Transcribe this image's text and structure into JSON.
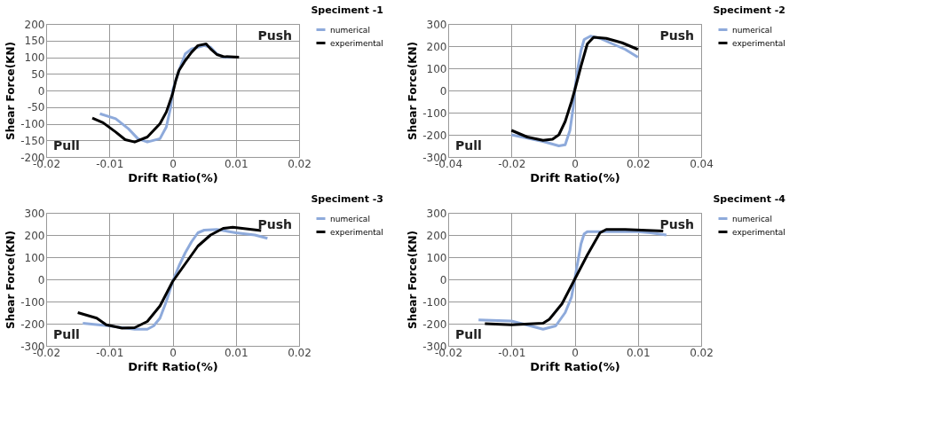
{
  "chart_data": [
    {
      "type": "line",
      "title": "Speciment -1",
      "xlabel": "Drift Ratio(%)",
      "ylabel": "Shear Force(KN)",
      "annotations": [
        "Push",
        "Pull"
      ],
      "xlim": [
        -0.02,
        0.02
      ],
      "xticks": [
        -0.02,
        -0.01,
        0,
        0.01,
        0.02
      ],
      "ylim": [
        -200,
        200
      ],
      "yticks": [
        -200,
        -150,
        -100,
        -50,
        0,
        50,
        100,
        150,
        200
      ],
      "grid": true,
      "legend": "right",
      "line_style": "solid",
      "marker": "none",
      "series": [
        {
          "name": "numerical",
          "color": "#8eaadb",
          "x": [
            -0.0115,
            -0.009,
            -0.007,
            -0.0055,
            -0.004,
            -0.002,
            -0.001,
            -0.0003,
            0,
            0.001,
            0.002,
            0.003,
            0.004,
            0.005,
            0.006,
            0.007,
            0.008,
            0.0095
          ],
          "values": [
            -70,
            -85,
            -115,
            -145,
            -155,
            -145,
            -110,
            -50,
            0,
            60,
            110,
            125,
            130,
            135,
            130,
            110,
            100,
            100
          ]
        },
        {
          "name": "experimental",
          "color": "#000000",
          "x": [
            -0.0127,
            -0.011,
            -0.009,
            -0.0075,
            -0.006,
            -0.004,
            -0.002,
            -0.001,
            0,
            0.0005,
            0.001,
            0.002,
            0.003,
            0.004,
            0.0053,
            0.006,
            0.007,
            0.008,
            0.0105
          ],
          "values": [
            -83,
            -97,
            -125,
            -148,
            -155,
            -140,
            -100,
            -65,
            -10,
            30,
            60,
            90,
            115,
            135,
            140,
            125,
            108,
            102,
            100
          ]
        }
      ]
    },
    {
      "type": "line",
      "title": "Speciment -2",
      "xlabel": "Drift Ratio(%)",
      "ylabel": "Shear Force(KN)",
      "annotations": [
        "Push",
        "Pull"
      ],
      "xlim": [
        -0.04,
        0.04
      ],
      "xticks": [
        -0.04,
        -0.02,
        0,
        0.02,
        0.04
      ],
      "ylim": [
        -300,
        300
      ],
      "yticks": [
        -300,
        -200,
        -100,
        0,
        100,
        200,
        300
      ],
      "grid": true,
      "legend": "right",
      "line_style": "solid",
      "marker": "none",
      "series": [
        {
          "name": "numerical",
          "color": "#8eaadb",
          "x": [
            -0.02,
            -0.01,
            -0.005,
            -0.003,
            -0.0015,
            -0.0005,
            0,
            0.001,
            0.002,
            0.003,
            0.005,
            0.008,
            0.012,
            0.016,
            0.02
          ],
          "values": [
            -200,
            -230,
            -250,
            -245,
            -180,
            -80,
            0,
            100,
            180,
            230,
            245,
            235,
            210,
            185,
            150
          ]
        },
        {
          "name": "experimental",
          "color": "#000000",
          "x": [
            -0.02,
            -0.015,
            -0.01,
            -0.007,
            -0.005,
            -0.003,
            -0.001,
            0,
            0.002,
            0.004,
            0.006,
            0.01,
            0.015,
            0.02
          ],
          "values": [
            -180,
            -210,
            -225,
            -220,
            -200,
            -140,
            -50,
            0,
            110,
            210,
            240,
            235,
            215,
            185
          ]
        }
      ]
    },
    {
      "type": "line",
      "title": "Speciment -3",
      "xlabel": "Drift Ratio(%)",
      "ylabel": "Shear Force(KN)",
      "annotations": [
        "Push",
        "Pull"
      ],
      "xlim": [
        -0.02,
        0.02
      ],
      "xticks": [
        -0.02,
        -0.01,
        0,
        0.01,
        0.02
      ],
      "ylim": [
        -300,
        300
      ],
      "yticks": [
        -300,
        -200,
        -100,
        0,
        100,
        200,
        300
      ],
      "grid": true,
      "legend": "right",
      "line_style": "solid",
      "marker": "none",
      "series": [
        {
          "name": "numerical",
          "color": "#8eaadb",
          "x": [
            -0.0142,
            -0.01,
            -0.006,
            -0.004,
            -0.003,
            -0.002,
            -0.001,
            0,
            0.001,
            0.002,
            0.003,
            0.004,
            0.005,
            0.007,
            0.01,
            0.013,
            0.015
          ],
          "values": [
            -198,
            -210,
            -225,
            -225,
            -210,
            -175,
            -100,
            -10,
            60,
            120,
            170,
            210,
            222,
            225,
            210,
            200,
            185
          ]
        },
        {
          "name": "experimental",
          "color": "#000000",
          "x": [
            -0.015,
            -0.012,
            -0.0105,
            -0.008,
            -0.006,
            -0.004,
            -0.002,
            0,
            0.002,
            0.004,
            0.006,
            0.008,
            0.0095,
            0.011,
            0.014
          ],
          "values": [
            -150,
            -175,
            -205,
            -220,
            -218,
            -190,
            -120,
            -10,
            70,
            150,
            200,
            230,
            235,
            230,
            220
          ]
        }
      ]
    },
    {
      "type": "line",
      "title": "Speciment -4",
      "xlabel": "Drift Ratio(%)",
      "ylabel": "Shear Force(KN)",
      "annotations": [
        "Push",
        "Pull"
      ],
      "xlim": [
        -0.02,
        0.02
      ],
      "xticks": [
        -0.02,
        -0.01,
        0,
        0.01,
        0.02
      ],
      "ylim": [
        -300,
        300
      ],
      "yticks": [
        -300,
        -200,
        -100,
        0,
        100,
        200,
        300
      ],
      "grid": true,
      "legend": "right",
      "line_style": "solid",
      "marker": "none",
      "series": [
        {
          "name": "numerical",
          "color": "#8eaadb",
          "x": [
            -0.0152,
            -0.01,
            -0.007,
            -0.005,
            -0.003,
            -0.0015,
            -0.0005,
            0,
            0.0005,
            0.001,
            0.0015,
            0.002,
            0.005,
            0.01,
            0.012,
            0.0145
          ],
          "values": [
            -183,
            -188,
            -210,
            -225,
            -210,
            -150,
            -80,
            0,
            80,
            160,
            205,
            215,
            215,
            215,
            210,
            200
          ]
        },
        {
          "name": "experimental",
          "color": "#000000",
          "x": [
            -0.0142,
            -0.01,
            -0.005,
            -0.004,
            -0.002,
            0,
            0.002,
            0.004,
            0.005,
            0.008,
            0.014
          ],
          "values": [
            -200,
            -205,
            -198,
            -180,
            -110,
            0,
            110,
            210,
            225,
            225,
            218
          ]
        }
      ]
    }
  ]
}
